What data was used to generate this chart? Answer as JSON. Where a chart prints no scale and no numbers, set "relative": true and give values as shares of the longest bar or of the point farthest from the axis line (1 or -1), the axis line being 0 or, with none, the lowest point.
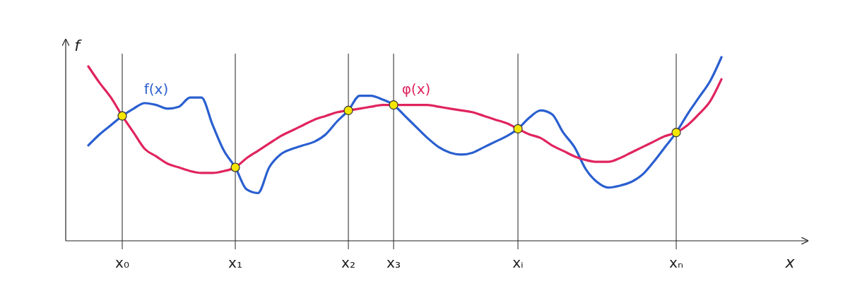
{
  "chart_data": {
    "type": "line",
    "relative": true,
    "xlabel": "x",
    "ylabel": "f",
    "categories": [
      null,
      null,
      null,
      null,
      null,
      "x₀",
      null,
      null,
      null,
      null,
      null,
      null,
      null,
      null,
      null,
      "x₁",
      null,
      null,
      null,
      null,
      null,
      null,
      null,
      null,
      null,
      "x₂",
      null,
      null,
      null,
      "x₃",
      null,
      null,
      null,
      null,
      null,
      null,
      null,
      null,
      null,
      null,
      "xᵢ",
      null,
      null,
      null,
      null,
      null,
      null,
      null,
      null,
      null,
      null,
      null,
      null,
      null,
      "xₙ",
      null,
      null,
      null,
      null,
      null,
      null,
      null,
      null,
      null,
      null,
      null
    ],
    "grid": "x",
    "tick_labels": "x",
    "series": [
      {
        "name": "f(x)",
        "color": "#2a5fd0",
        "values": [
          null,
          null,
          0.52,
          0.58,
          0.63,
          0.68,
          0.72,
          0.75,
          0.74,
          0.72,
          0.73,
          0.78,
          0.78,
          0.63,
          0.49,
          0.4,
          0.28,
          0.26,
          0.4,
          0.47,
          0.5,
          0.52,
          0.54,
          0.58,
          0.65,
          0.71,
          0.79,
          0.79,
          0.77,
          0.74,
          0.68,
          0.62,
          0.56,
          0.51,
          0.48,
          0.47,
          0.48,
          0.51,
          0.54,
          0.57,
          0.61,
          0.67,
          0.71,
          0.69,
          0.59,
          0.51,
          0.39,
          0.32,
          0.29,
          0.3,
          0.32,
          0.36,
          0.43,
          0.51,
          0.59,
          0.69,
          0.78,
          0.87,
          1,
          null,
          null,
          null,
          null,
          null,
          null,
          null
        ]
      },
      {
        "name": "φ(x)",
        "color": "#e0245e",
        "values": [
          null,
          null,
          0.95,
          0.86,
          0.78,
          0.68,
          0.59,
          0.5,
          0.46,
          0.42,
          0.4,
          0.38,
          0.37,
          0.37,
          0.38,
          0.4,
          0.45,
          0.49,
          0.53,
          0.57,
          0.6,
          0.63,
          0.66,
          0.68,
          0.7,
          0.71,
          0.72,
          0.73,
          0.74,
          0.74,
          0.74,
          0.74,
          0.74,
          0.73,
          0.72,
          0.71,
          0.7,
          0.68,
          0.66,
          0.64,
          0.61,
          0.58,
          0.56,
          0.52,
          0.49,
          0.46,
          0.44,
          0.43,
          0.43,
          0.45,
          0.48,
          0.51,
          0.54,
          0.57,
          0.59,
          0.63,
          0.69,
          0.76,
          0.88,
          null,
          null,
          null,
          null,
          null,
          null,
          null
        ]
      },
      {
        "type": "scatter",
        "marker": "circle",
        "color": "#f5e600",
        "x": [
          "x₀",
          "x₁",
          "x₂",
          "x₃",
          "xᵢ",
          "xₙ"
        ],
        "values": [
          0.68,
          0.4,
          0.71,
          0.74,
          0.61,
          0.59
        ]
      }
    ]
  }
}
